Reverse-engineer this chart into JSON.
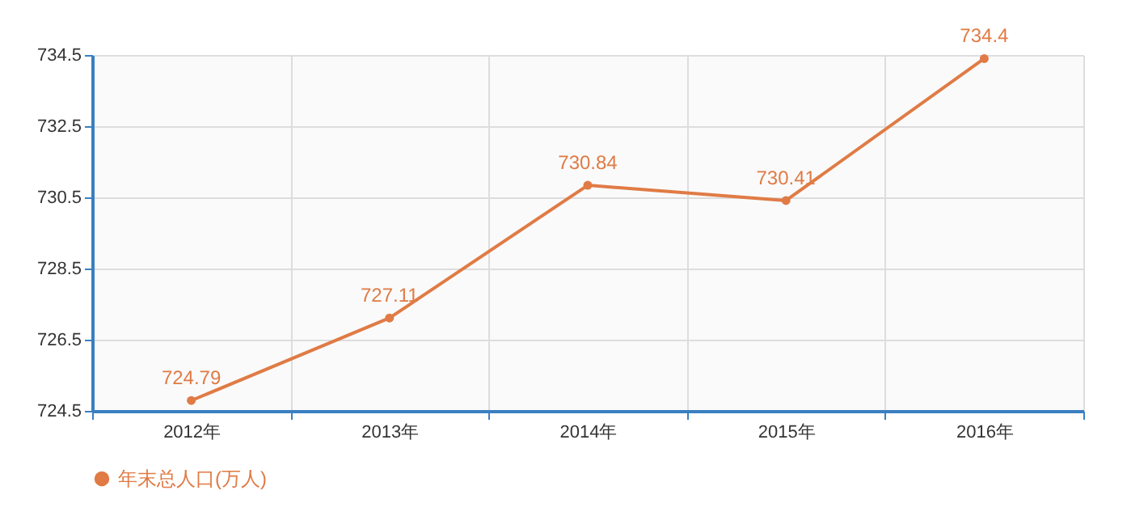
{
  "chart_data": {
    "type": "line",
    "categories": [
      "2012年",
      "2013年",
      "2014年",
      "2015年",
      "2016年"
    ],
    "series": [
      {
        "name": "年末总人口(万人)",
        "color": "#e07b45",
        "values": [
          724.79,
          727.11,
          730.84,
          730.41,
          734.4
        ]
      }
    ],
    "ylim": [
      724.5,
      734.5
    ],
    "yticks": [
      724.5,
      726.5,
      728.5,
      730.5,
      732.5,
      734.5
    ],
    "grid": true,
    "legend": "bottom",
    "marker": "circle",
    "data_labels": true
  }
}
